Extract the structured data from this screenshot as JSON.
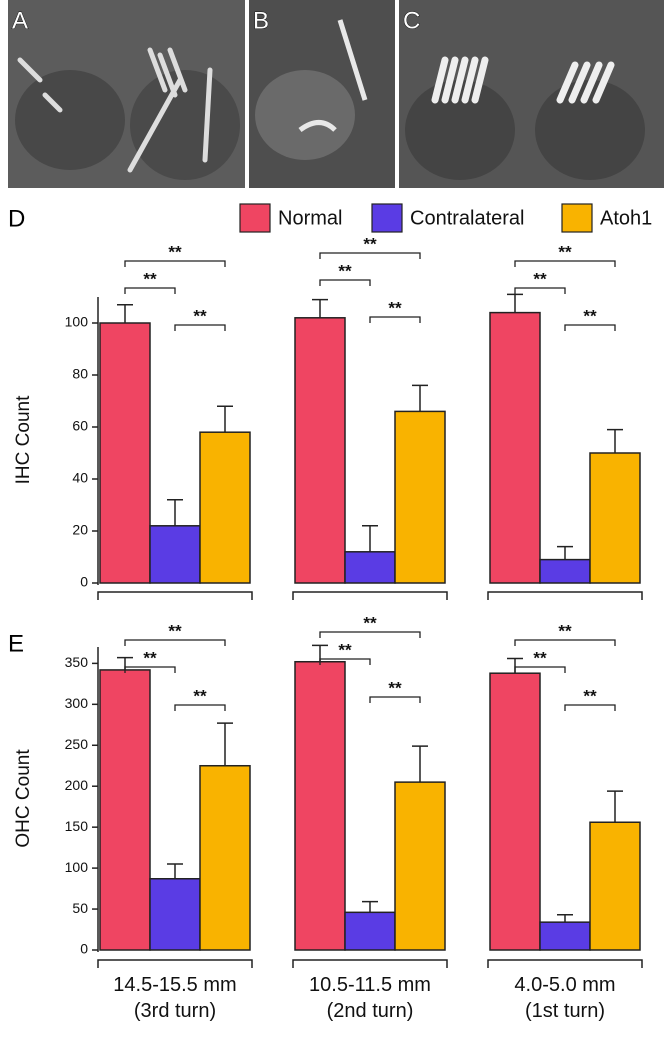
{
  "panels": [
    {
      "label": "A"
    },
    {
      "label": "B"
    },
    {
      "label": "C"
    }
  ],
  "chart_data": [
    {
      "type": "bar",
      "panel_label": "D",
      "ylabel": "IHC Count",
      "categories": [
        null,
        null,
        null
      ],
      "series": [
        {
          "name": "Normal",
          "color": "#ef4562",
          "values": [
            100,
            102,
            104
          ],
          "errors": [
            7,
            7,
            7
          ]
        },
        {
          "name": "Contralateral",
          "color": "#5a3ce4",
          "values": [
            22,
            12,
            9
          ],
          "errors": [
            10,
            10,
            5
          ]
        },
        {
          "name": "Atoh1",
          "color": "#f9b300",
          "values": [
            58,
            66,
            50
          ],
          "errors": [
            10,
            10,
            9
          ]
        }
      ],
      "ylim": [
        0,
        110
      ],
      "yticks": [
        0,
        20,
        40,
        60,
        80,
        100
      ],
      "legend": true,
      "significance": [
        [
          "**",
          "**",
          "**"
        ],
        [
          "**",
          "**",
          "**"
        ],
        [
          "**",
          "**",
          "**"
        ]
      ]
    },
    {
      "type": "bar",
      "panel_label": "E",
      "ylabel": "OHC Count",
      "categories": [
        "14.5-15.5 mm\n(3rd turn)",
        "10.5-11.5 mm\n(2nd turn)",
        "4.0-5.0 mm\n(1st turn)"
      ],
      "series": [
        {
          "color": "#ef4562",
          "values": [
            342,
            352,
            338
          ],
          "errors": [
            15,
            20,
            18
          ]
        },
        {
          "color": "#5a3ce4",
          "values": [
            87,
            46,
            34
          ],
          "errors": [
            18,
            13,
            9
          ]
        },
        {
          "color": "#f9b300",
          "values": [
            225,
            205,
            156
          ],
          "errors": [
            52,
            44,
            38
          ]
        }
      ],
      "ylim": [
        0,
        370
      ],
      "yticks": [
        0,
        50,
        100,
        150,
        200,
        250,
        300,
        350
      ],
      "legend": false,
      "significance": [
        [
          "**",
          "**",
          "**"
        ],
        [
          "**",
          "**",
          "**"
        ],
        [
          "**",
          "**",
          "**"
        ]
      ]
    }
  ]
}
